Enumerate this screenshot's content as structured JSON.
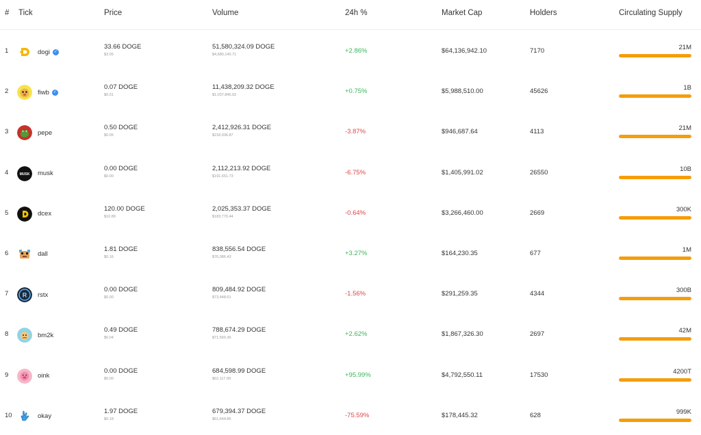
{
  "columns": {
    "rank": "#",
    "tick": "Tick",
    "price": "Price",
    "volume": "Volume",
    "change": "24h %",
    "market_cap": "Market Cap",
    "holders": "Holders",
    "supply": "Circulating Supply"
  },
  "colors": {
    "positive": "#3cb55a",
    "negative": "#e04545",
    "supply_bar": "#f59d0b",
    "verified": "#3d8ef0"
  },
  "rows": [
    {
      "rank": "1",
      "tick": "dogi",
      "verified": true,
      "logo_icon": "dogi-logo-icon",
      "price": "33.66 DOGE",
      "price_usd": "$3.05",
      "volume": "51,580,324.09 DOGE",
      "volume_usd": "$4,680,140.71",
      "change": "+2.86%",
      "direction": "up",
      "market_cap": "$64,136,942.10",
      "holders": "7170",
      "supply": "21M",
      "supply_fill": 1.0
    },
    {
      "rank": "2",
      "tick": "fiwb",
      "verified": true,
      "logo_icon": "fiwb-logo-icon",
      "price": "0.07 DOGE",
      "price_usd": "$0.01",
      "volume": "11,438,209.32 DOGE",
      "volume_usd": "$1,037,845.92",
      "change": "+0.75%",
      "direction": "up",
      "market_cap": "$5,988,510.00",
      "holders": "45626",
      "supply": "1B",
      "supply_fill": 1.0
    },
    {
      "rank": "3",
      "tick": "pepe",
      "verified": false,
      "logo_icon": "pepe-logo-icon",
      "price": "0.50 DOGE",
      "price_usd": "$0.05",
      "volume": "2,412,926.31 DOGE",
      "volume_usd": "$218,936.87",
      "change": "-3.87%",
      "direction": "down",
      "market_cap": "$946,687.64",
      "holders": "4113",
      "supply": "21M",
      "supply_fill": 1.0
    },
    {
      "rank": "4",
      "tick": "musk",
      "verified": false,
      "logo_icon": "musk-logo-icon",
      "price": "0.00 DOGE",
      "price_usd": "$0.00",
      "volume": "2,112,213.92 DOGE",
      "volume_usd": "$191,651.73",
      "change": "-6.75%",
      "direction": "down",
      "market_cap": "$1,405,991.02",
      "holders": "26550",
      "supply": "10B",
      "supply_fill": 1.0
    },
    {
      "rank": "5",
      "tick": "dcex",
      "verified": false,
      "logo_icon": "dcex-logo-icon",
      "price": "120.00 DOGE",
      "price_usd": "$10.89",
      "volume": "2,025,353.37 DOGE",
      "volume_usd": "$183,770.44",
      "change": "-0.64%",
      "direction": "down",
      "market_cap": "$3,266,460.00",
      "holders": "2669",
      "supply": "300K",
      "supply_fill": 1.0
    },
    {
      "rank": "6",
      "tick": "dall",
      "verified": false,
      "logo_icon": "dall-logo-icon",
      "price": "1.81 DOGE",
      "price_usd": "$0.16",
      "volume": "838,556.54 DOGE",
      "volume_usd": "$76,086.43",
      "change": "+3.27%",
      "direction": "up",
      "market_cap": "$164,230.35",
      "holders": "677",
      "supply": "1M",
      "supply_fill": 1.0
    },
    {
      "rank": "7",
      "tick": "rstx",
      "verified": false,
      "logo_icon": "rstx-logo-icon",
      "price": "0.00 DOGE",
      "price_usd": "$0.00",
      "volume": "809,484.92 DOGE",
      "volume_usd": "$73,448.61",
      "change": "-1.56%",
      "direction": "down",
      "market_cap": "$291,259.35",
      "holders": "4344",
      "supply": "300B",
      "supply_fill": 1.0
    },
    {
      "rank": "8",
      "tick": "bm2k",
      "verified": false,
      "logo_icon": "bm2k-logo-icon",
      "price": "0.49 DOGE",
      "price_usd": "$0.04",
      "volume": "788,674.29 DOGE",
      "volume_usd": "$71,560.36",
      "change": "+2.62%",
      "direction": "up",
      "market_cap": "$1,867,326.30",
      "holders": "2697",
      "supply": "42M",
      "supply_fill": 1.0
    },
    {
      "rank": "9",
      "tick": "oink",
      "verified": false,
      "logo_icon": "oink-logo-icon",
      "price": "0.00 DOGE",
      "price_usd": "$0.00",
      "volume": "684,598.99 DOGE",
      "volume_usd": "$62,117.09",
      "change": "+95.99%",
      "direction": "up",
      "market_cap": "$4,792,550.11",
      "holders": "17530",
      "supply": "4200T",
      "supply_fill": 1.0
    },
    {
      "rank": "10",
      "tick": "okay",
      "verified": false,
      "logo_icon": "okay-logo-icon",
      "price": "1.97 DOGE",
      "price_usd": "$0.18",
      "volume": "679,394.37 DOGE",
      "volume_usd": "$61,644.85",
      "change": "-75.59%",
      "direction": "down",
      "market_cap": "$178,445.32",
      "holders": "628",
      "supply": "999K",
      "supply_fill": 1.0
    }
  ]
}
